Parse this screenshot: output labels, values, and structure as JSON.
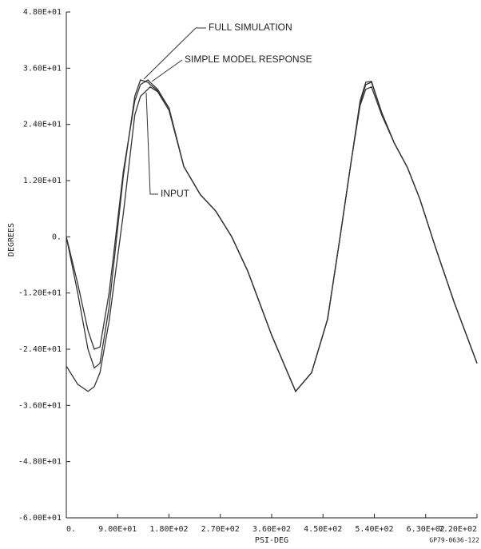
{
  "chart_data": {
    "type": "line",
    "x_label": "PSI-DEG",
    "y_label": "DEGREES",
    "footnote": "GP79-0636-122",
    "annotations": [
      "FULL SIMULATION",
      "SIMPLE MODEL RESPONSE",
      "INPUT"
    ],
    "x": [
      0,
      20,
      38,
      49,
      59,
      75,
      100,
      120,
      130,
      143,
      147,
      160,
      180,
      206,
      235,
      262,
      290,
      318,
      360,
      402,
      430,
      458,
      480,
      500,
      515,
      525,
      535,
      553,
      575,
      598,
      620,
      647,
      680,
      720
    ],
    "series": [
      {
        "name": "INPUT",
        "color": "#333333",
        "values": [
          -27.6,
          -31.5,
          -33,
          -32,
          -29,
          -18,
          5,
          26,
          30,
          31.5,
          32,
          31,
          27,
          15,
          9,
          5.5,
          0,
          -7.3,
          -21,
          -33,
          -29,
          -17.6,
          0,
          16.6,
          28,
          31.5,
          32,
          26,
          20,
          14.8,
          8,
          -2.2,
          -14,
          -27
        ]
      },
      {
        "name": "FULL SIMULATION",
        "color": "#333333",
        "values": [
          0,
          -12,
          -24,
          -28,
          -27,
          -15,
          13,
          30,
          33.5,
          33,
          32.5,
          31.2,
          27.5,
          15,
          9,
          5.5,
          0,
          -7.3,
          -21,
          -33,
          -29,
          -17.6,
          0,
          16.6,
          29,
          33,
          33.2,
          26.5,
          20,
          14.8,
          8,
          -2.2,
          -14,
          -27
        ]
      },
      {
        "name": "SIMPLE MODEL RESPONSE",
        "color": "#333333",
        "values": [
          0,
          -10,
          -20,
          -24,
          -23.5,
          -12,
          14,
          29,
          32.5,
          33.5,
          33,
          31.5,
          27.5,
          15,
          9,
          5.5,
          0,
          -7.3,
          -21,
          -33,
          -29,
          -17.6,
          0,
          16.6,
          28.5,
          32.5,
          33,
          26.5,
          20,
          14.8,
          8,
          -2.2,
          -14,
          -27
        ]
      }
    ],
    "xlim": [
      0,
      720
    ],
    "ylim": [
      -60,
      48
    ],
    "xticks": [
      {
        "value": 0,
        "label": "0."
      },
      {
        "value": 90,
        "label": "9.00E+01"
      },
      {
        "value": 180,
        "label": "1.80E+02"
      },
      {
        "value": 270,
        "label": "2.70E+02"
      },
      {
        "value": 360,
        "label": "3.60E+02"
      },
      {
        "value": 450,
        "label": "4.50E+02"
      },
      {
        "value": 540,
        "label": "5.40E+02"
      },
      {
        "value": 630,
        "label": "6.30E+02"
      },
      {
        "value": 720,
        "label": "7.20E+02"
      }
    ],
    "yticks": [
      {
        "value": 48,
        "label": "4.80E+01"
      },
      {
        "value": 36,
        "label": "3.60E+01"
      },
      {
        "value": 24,
        "label": "2.40E+01"
      },
      {
        "value": 12,
        "label": "1.20E+01"
      },
      {
        "value": 0,
        "label": "0."
      },
      {
        "value": -12,
        "label": "-1.20E+01"
      },
      {
        "value": -24,
        "label": "-2.40E+01"
      },
      {
        "value": -36,
        "label": "-3.60E+01"
      },
      {
        "value": -48,
        "label": "-4.80E+01"
      },
      {
        "value": -60,
        "label": "-6.00E+01"
      }
    ]
  }
}
